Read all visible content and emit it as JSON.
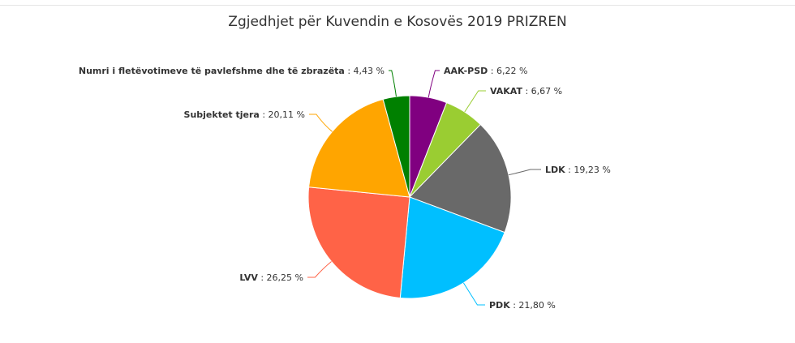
{
  "chart_data": {
    "type": "pie",
    "title": "Zgjedhjet për Kuvendin e Kosovës 2019 PRIZREN",
    "slices": [
      {
        "name": "AAK-PSD",
        "value": 6.22,
        "value_label": "6,22 %",
        "color": "#800080"
      },
      {
        "name": "VAKAT",
        "value": 6.67,
        "value_label": "6,67 %",
        "color": "#9acd32"
      },
      {
        "name": "LDK",
        "value": 19.23,
        "value_label": "19,23 %",
        "color": "#696969"
      },
      {
        "name": "PDK",
        "value": 21.8,
        "value_label": "21,80 %",
        "color": "#00bfff"
      },
      {
        "name": "LVV",
        "value": 26.25,
        "value_label": "26,25 %",
        "color": "#ff6347"
      },
      {
        "name": "Subjektet tjera",
        "value": 20.11,
        "value_label": "20,11 %",
        "color": "#ffa500"
      },
      {
        "name": "Numri i fletëvotimeve të pavlefshme dhe të zbrazëta",
        "value": 4.43,
        "value_label": "4,43 %",
        "color": "#008000"
      }
    ],
    "legend": "none",
    "data_labels": "outside with connectors"
  }
}
